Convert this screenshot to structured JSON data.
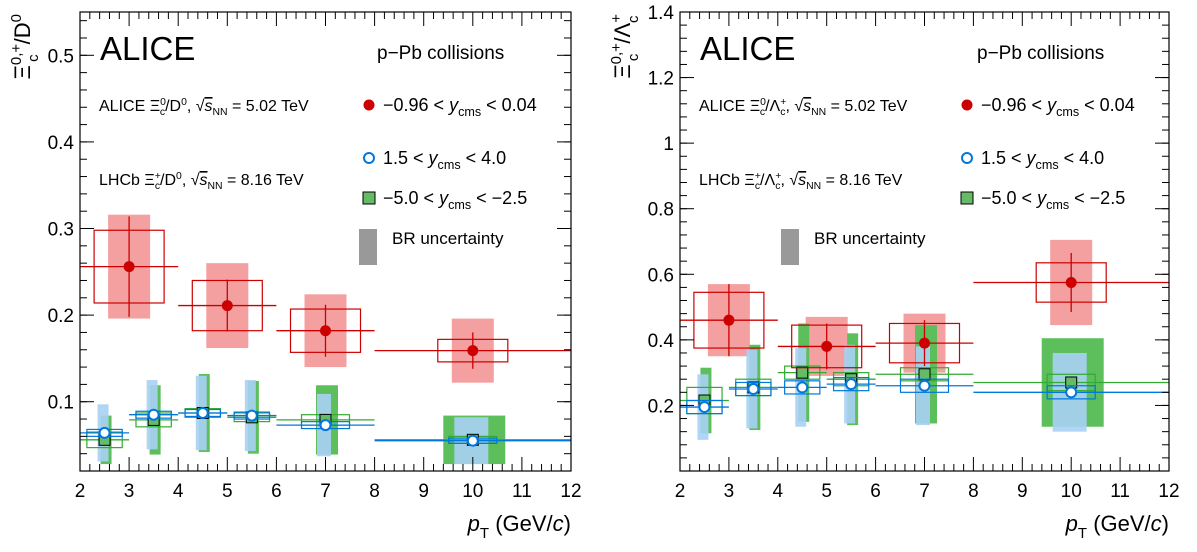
{
  "colors": {
    "red": "#cc0000",
    "red_band": "#f4a0a0",
    "blue": "#0077dd",
    "blue_band": "#a8d0f4",
    "green": "#33aa33",
    "green_band": "#5cbf5c",
    "green_marker": "#66bb66",
    "grey_band": "#999999"
  },
  "chart_data": [
    {
      "type": "scatter",
      "panel": "left",
      "ylabel": "Ξc0,+/D0",
      "xlabel": "pT (GeV/c)",
      "xlim": [
        2,
        12
      ],
      "ylim": [
        0.02,
        0.55
      ],
      "xticks": [
        2,
        3,
        4,
        5,
        6,
        7,
        8,
        9,
        10,
        11,
        12
      ],
      "yticks": [
        0.1,
        0.2,
        0.3,
        0.4,
        0.5
      ],
      "experiment": "ALICE",
      "system": "p−Pb collisions",
      "alice_label": "ALICE Ξc0/D0, √sNN = 5.02 TeV",
      "lhcb_label": "LHCb Ξc+/D0, √sNN = 8.16 TeV",
      "legend": {
        "red": "−0.96 < ycms < 0.04",
        "blue": "1.5 < ycms < 4.0",
        "green": "−5.0 < ycms < −2.5",
        "br": "BR uncertainty"
      },
      "series": [
        {
          "key": "red",
          "x": [
            3,
            5,
            7,
            10
          ],
          "xlo": [
            2,
            4,
            6,
            8
          ],
          "xhi": [
            4,
            6,
            8,
            12
          ],
          "y": [
            0.256,
            0.211,
            0.182,
            0.159
          ],
          "stat": [
            0.058,
            0.03,
            0.03,
            0.021
          ],
          "syst": [
            0.042,
            0.029,
            0.025,
            0.013
          ],
          "br": [
            0.06,
            0.049,
            0.042,
            0.037
          ]
        },
        {
          "key": "blue",
          "x": [
            2.5,
            3.5,
            4.5,
            5.5,
            7,
            10
          ],
          "xlo": [
            2,
            3,
            4,
            5,
            6,
            8
          ],
          "xhi": [
            3,
            4,
            5,
            6,
            8,
            12
          ],
          "y": [
            0.064,
            0.085,
            0.087,
            0.084,
            0.073,
            0.055
          ],
          "stat": [
            0.003,
            0.003,
            0.003,
            0.003,
            0.003,
            0.002
          ],
          "syst": [
            0.004,
            0.004,
            0.004,
            0.004,
            0.004,
            0.003
          ],
          "br": [
            0.033,
            0.04,
            0.043,
            0.041,
            0.036,
            0.027
          ]
        },
        {
          "key": "green",
          "x": [
            2.5,
            3.5,
            4.5,
            5.5,
            7,
            10
          ],
          "xlo": [
            2,
            3,
            4,
            5,
            6,
            8
          ],
          "xhi": [
            3,
            4,
            5,
            6,
            8,
            12
          ],
          "y": [
            0.056,
            0.079,
            0.087,
            0.082,
            0.079,
            0.056
          ],
          "stat": [
            0.003,
            0.003,
            0.003,
            0.003,
            0.003,
            0.002
          ],
          "syst": [
            0.009,
            0.008,
            0.005,
            0.005,
            0.006,
            0.004
          ],
          "br": [
            0.028,
            0.04,
            0.045,
            0.042,
            0.04,
            0.028
          ]
        }
      ]
    },
    {
      "type": "scatter",
      "panel": "right",
      "ylabel": "Ξc0,+/Λc+",
      "xlabel": "pT (GeV/c)",
      "xlim": [
        2,
        12
      ],
      "ylim": [
        0.0,
        1.4
      ],
      "xticks": [
        2,
        3,
        4,
        5,
        6,
        7,
        8,
        9,
        10,
        11,
        12
      ],
      "yticks": [
        0.2,
        0.4,
        0.6,
        0.8,
        1.0,
        1.2,
        1.4
      ],
      "ytick_labels": [
        "0.2",
        "0.4",
        "0.6",
        "0.8",
        "1",
        "1.2",
        "1.4"
      ],
      "experiment": "ALICE",
      "system": "p−Pb collisions",
      "alice_label": "ALICE Ξc0/Λc+, √sNN = 5.02 TeV",
      "lhcb_label": "LHCb Ξc+/Λc+, √sNN = 8.16 TeV",
      "legend": {
        "red": "−0.96 < ycms < 0.04",
        "blue": "1.5 < ycms < 4.0",
        "green": "−5.0 < ycms < −2.5",
        "br": "BR uncertainty"
      },
      "series": [
        {
          "key": "red",
          "x": [
            3,
            5,
            7,
            10
          ],
          "xlo": [
            2,
            4,
            6,
            8
          ],
          "xhi": [
            4,
            6,
            8,
            12
          ],
          "y": [
            0.46,
            0.38,
            0.39,
            0.575
          ],
          "stat": [
            0.11,
            0.07,
            0.07,
            0.09
          ],
          "syst": [
            0.085,
            0.065,
            0.06,
            0.06
          ],
          "br": [
            0.11,
            0.09,
            0.09,
            0.13
          ]
        },
        {
          "key": "blue",
          "x": [
            2.5,
            3.5,
            4.5,
            5.5,
            7,
            10
          ],
          "xlo": [
            2,
            3,
            4,
            5,
            6,
            8
          ],
          "xhi": [
            3,
            4,
            5,
            6,
            8,
            12
          ],
          "y": [
            0.195,
            0.25,
            0.255,
            0.265,
            0.26,
            0.24
          ],
          "stat": [
            0.008,
            0.008,
            0.008,
            0.008,
            0.008,
            0.008
          ],
          "syst": [
            0.02,
            0.02,
            0.02,
            0.02,
            0.02,
            0.02
          ],
          "br": [
            0.1,
            0.12,
            0.12,
            0.12,
            0.12,
            0.12
          ]
        },
        {
          "key": "green",
          "x": [
            2.5,
            3.5,
            4.5,
            5.5,
            7,
            10
          ],
          "xlo": [
            2,
            3,
            4,
            5,
            6,
            8
          ],
          "xhi": [
            3,
            4,
            5,
            6,
            8,
            12
          ],
          "y": [
            0.215,
            0.255,
            0.3,
            0.28,
            0.295,
            0.27
          ],
          "stat": [
            0.008,
            0.008,
            0.008,
            0.008,
            0.008,
            0.008
          ],
          "syst": [
            0.04,
            0.025,
            0.02,
            0.02,
            0.02,
            0.025
          ],
          "br": [
            0.1,
            0.13,
            0.15,
            0.14,
            0.15,
            0.135
          ]
        }
      ]
    }
  ]
}
